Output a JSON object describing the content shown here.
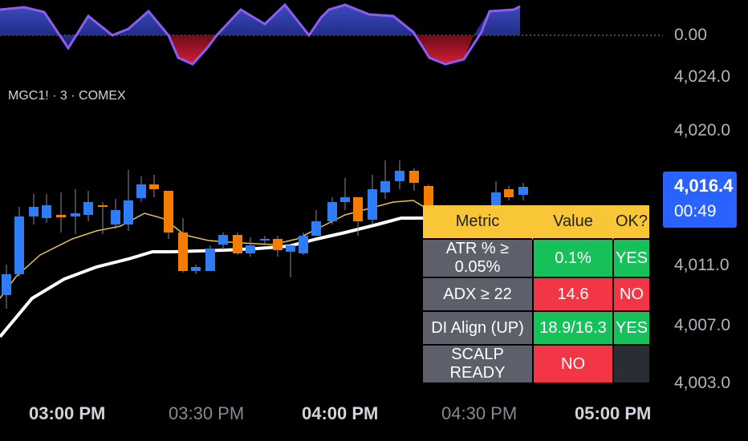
{
  "symbol_legend": "MGC1! · 3 · COMEX",
  "oscillator": {
    "zero_label": "0.00"
  },
  "price_axis": {
    "labels": [
      "4,024.0",
      "4,020.0",
      "4,011.0",
      "4,007.0",
      "4,003.0"
    ]
  },
  "last_price": {
    "value": "4,016.4",
    "countdown": "00:49"
  },
  "time_axis": {
    "labels": [
      "03:00 PM",
      "03:30 PM",
      "04:00 PM",
      "04:30 PM",
      "05:00 PM"
    ]
  },
  "status_table": {
    "headers": [
      "Metric",
      "Value",
      "OK?"
    ],
    "rows": [
      {
        "metric": "ATR % ≥ 0.05%",
        "value": "0.1%",
        "ok": "YES",
        "value_status": "green",
        "ok_status": "green"
      },
      {
        "metric": "ADX ≥ 22",
        "value": "14.6",
        "ok": "NO",
        "value_status": "red",
        "ok_status": "red"
      },
      {
        "metric": "DI Align (UP)",
        "value": "18.9/16.3",
        "ok": "YES",
        "value_status": "green",
        "ok_status": "green"
      },
      {
        "metric": "SCALP READY",
        "value": "NO",
        "ok": "",
        "value_status": "red",
        "ok_status": "empty"
      }
    ]
  },
  "colors": {
    "background": "#000000",
    "up_candle": "#2e7cf6",
    "down_candle": "#f57c00",
    "fast_ma": "#e6c24a",
    "slow_ma": "#ffffff",
    "oscillator_line": "#8b5cf6",
    "header_yellow": "#f8c637",
    "ok_green": "#16c15a",
    "bad_red": "#f23645",
    "last_price_blue": "#2962ff"
  }
}
